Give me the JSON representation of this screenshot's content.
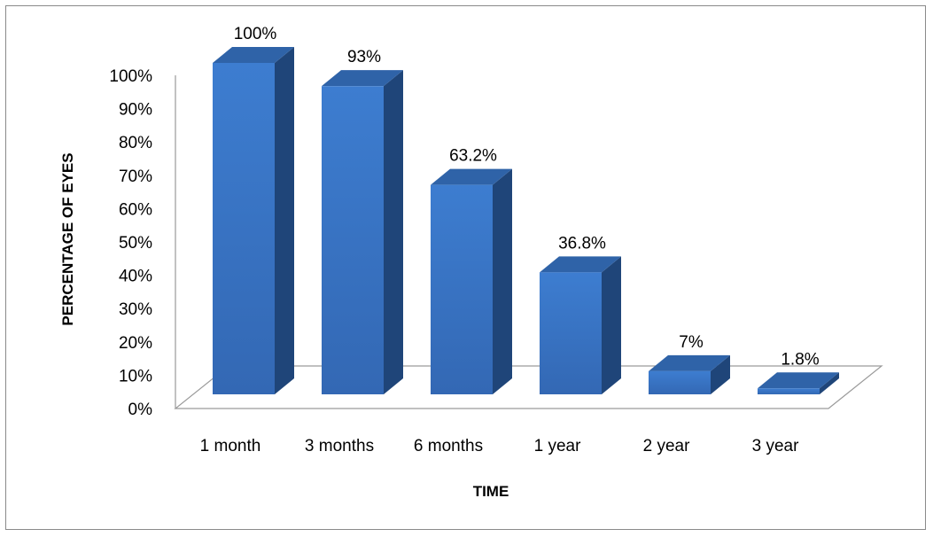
{
  "chart_data": {
    "type": "bar",
    "title": "",
    "xlabel": "TIME",
    "ylabel": "PERCENTAGE OF EYES",
    "categories": [
      "1 month",
      "3 months",
      "6 months",
      "1 year",
      "2 year",
      "3 year"
    ],
    "values": [
      100,
      93,
      63.2,
      36.8,
      7,
      1.8
    ],
    "data_labels": [
      "100%",
      "93%",
      "63.2%",
      "36.8%",
      "7%",
      "1.8%"
    ],
    "ylim": [
      0,
      100
    ],
    "yticks": [
      0,
      10,
      20,
      30,
      40,
      50,
      60,
      70,
      80,
      90,
      100
    ],
    "ytick_labels": [
      "0%",
      "10%",
      "20%",
      "30%",
      "40%",
      "50%",
      "60%",
      "70%",
      "80%",
      "90%",
      "100%"
    ],
    "style": "3d-column",
    "grid": false,
    "legend": "none",
    "colors": {
      "bar_front": "#3a78c9",
      "bar_top": "#2f63a8",
      "bar_side": "#1f4579",
      "floor_stroke": "#9a9a9a"
    }
  }
}
